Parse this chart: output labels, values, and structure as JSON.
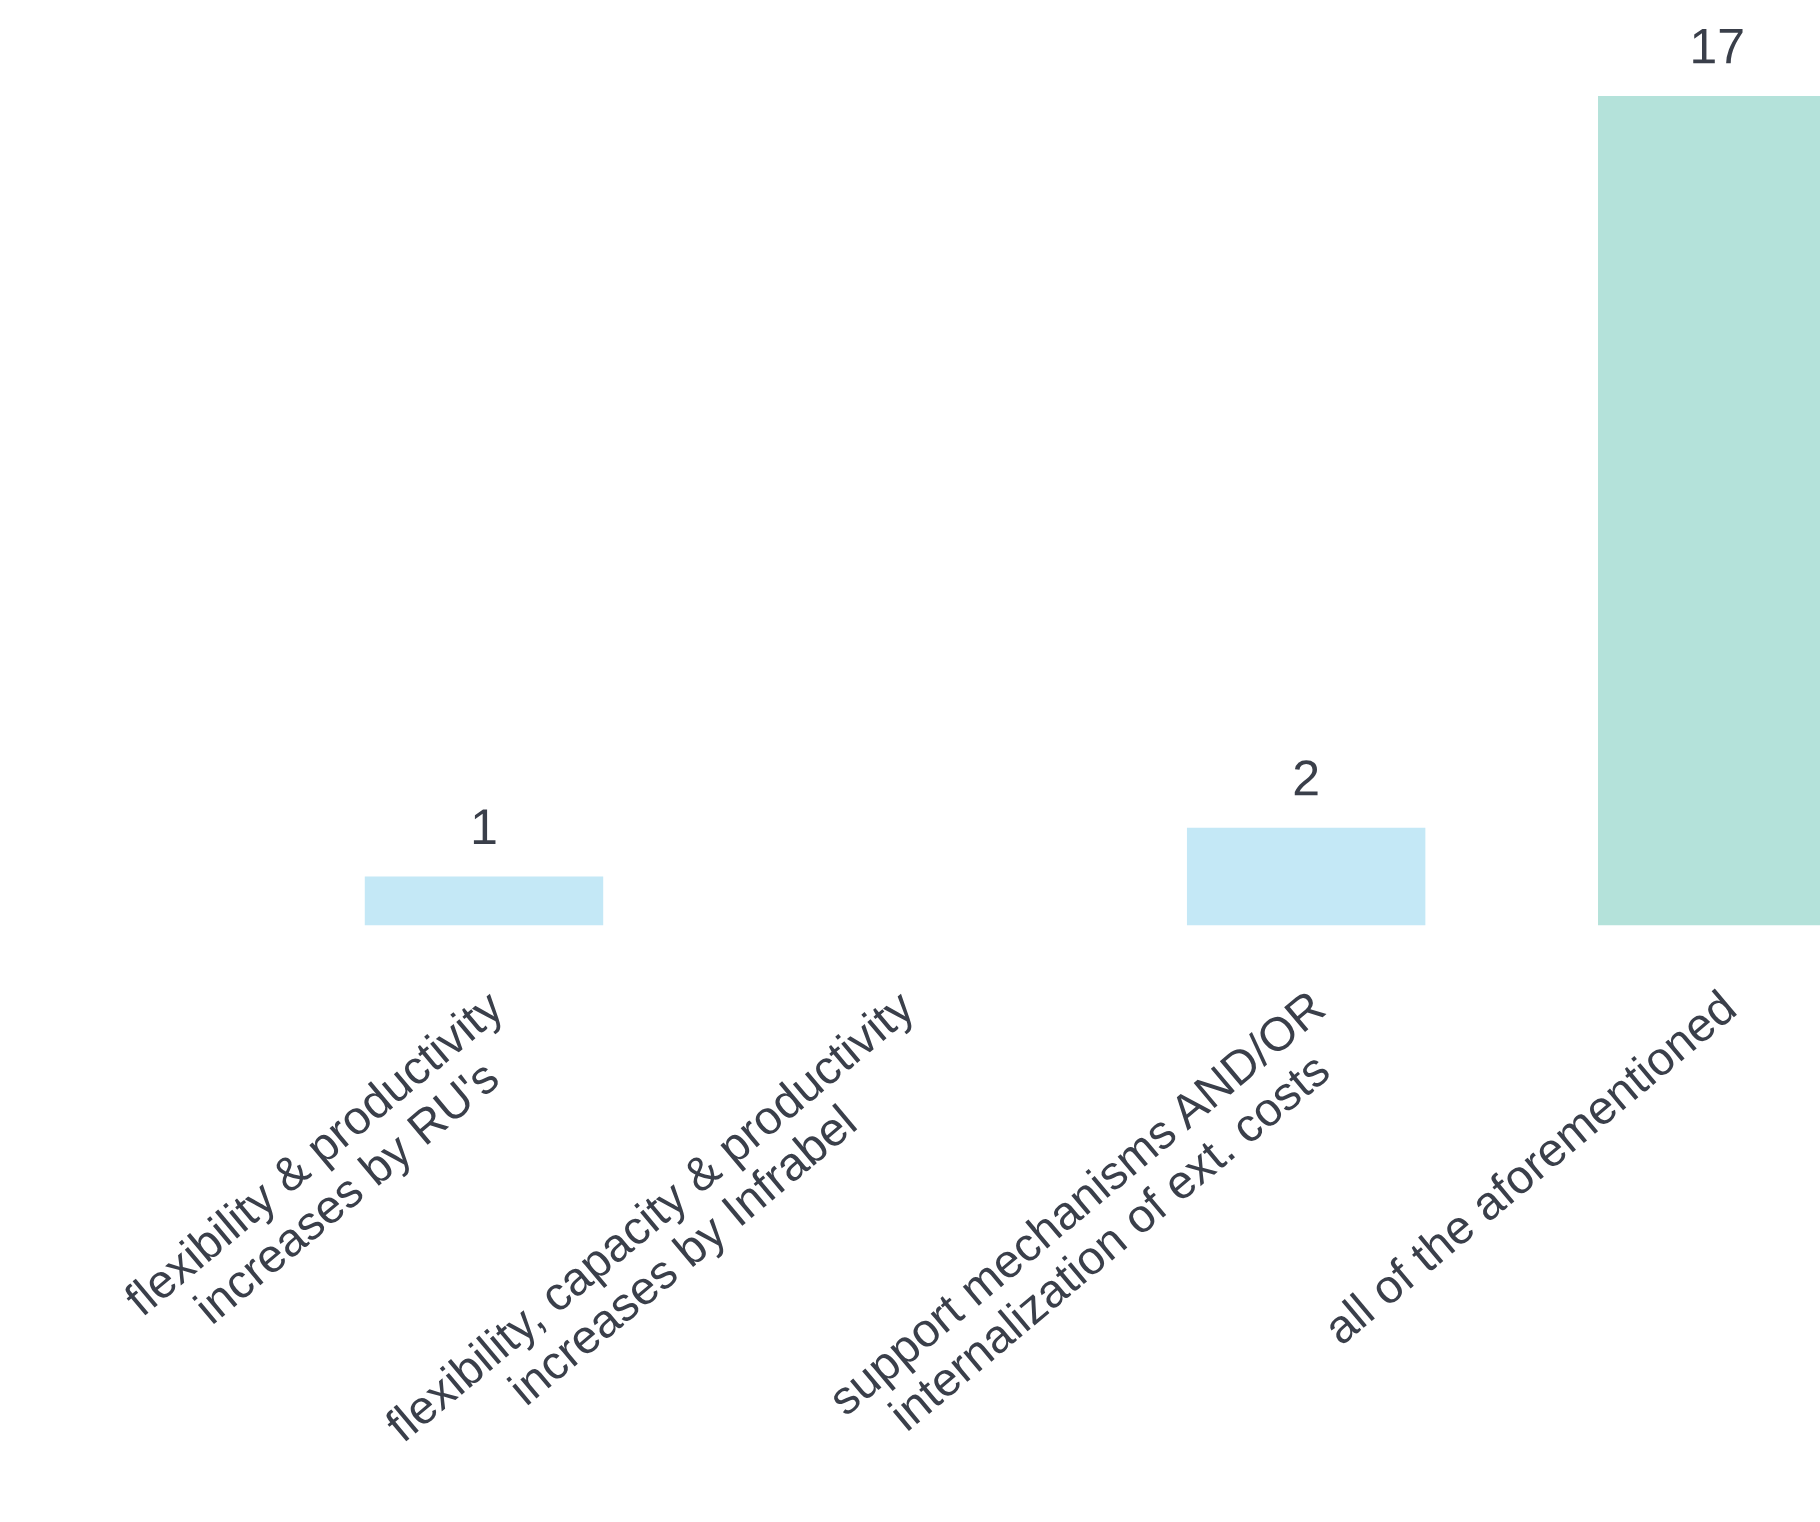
{
  "chart_data": {
    "type": "bar",
    "categories": [
      "flexibility & productivity\nincreases by RU's",
      "flexibility, capacity & productivity\nincreases by Infrabel",
      "support mechanisms AND/OR\ninternalization of ext. costs",
      "all of the aforementioned"
    ],
    "values": [
      1,
      0,
      2,
      17
    ],
    "colors": [
      "#c4e8f6",
      "#c4e8f6",
      "#c4e8f6",
      "#b4e2da"
    ],
    "value_labels": [
      "1",
      null,
      "2",
      "17"
    ],
    "grid": false,
    "legend": false,
    "tick_labels": "x"
  }
}
